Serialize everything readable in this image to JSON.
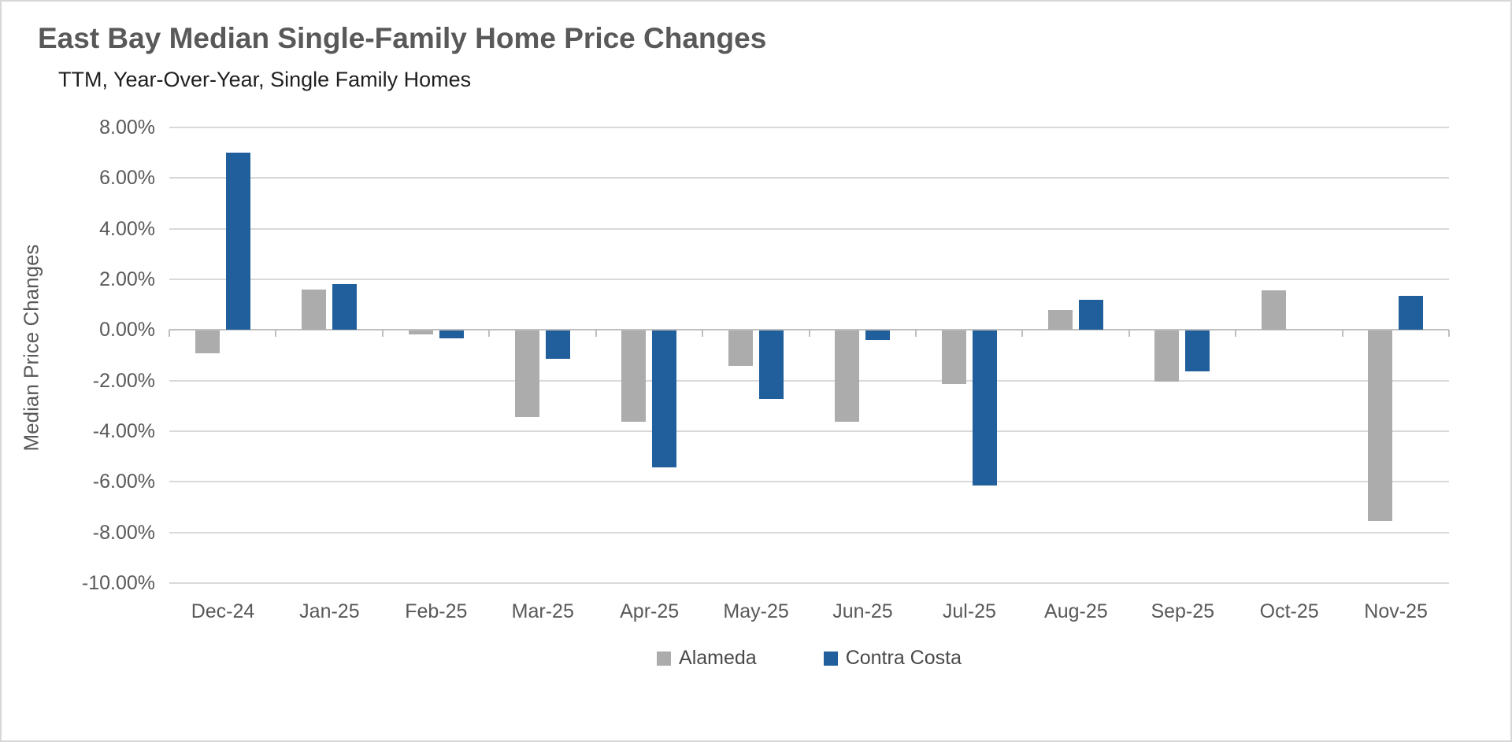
{
  "chart": {
    "title": "East Bay Median Single-Family Home Price Changes",
    "subtitle": "TTM, Year-Over-Year, Single Family Homes"
  },
  "chart_data": {
    "type": "bar",
    "title": "East Bay Median Single-Family Home Price Changes",
    "subtitle": "TTM, Year-Over-Year, Single Family Homes",
    "categories": [
      "Dec-24",
      "Jan-25",
      "Feb-25",
      "Mar-25",
      "Apr-25",
      "May-25",
      "Jun-25",
      "Jul-25",
      "Aug-25",
      "Sep-25",
      "Oct-25",
      "Nov-25"
    ],
    "series": [
      {
        "name": "Alameda",
        "color": "#acacac",
        "values": [
          -0.9,
          1.6,
          -0.15,
          -3.4,
          -3.6,
          -1.4,
          -3.6,
          -2.1,
          0.8,
          -2.0,
          1.55,
          -7.5
        ]
      },
      {
        "name": "Contra Costa",
        "color": "#215f9c",
        "values": [
          7.0,
          1.8,
          -0.3,
          -1.1,
          -5.4,
          -2.7,
          -0.35,
          -6.1,
          1.2,
          -1.6,
          0.0,
          1.35
        ]
      }
    ],
    "xlabel": "",
    "ylabel": "Median Price Changes",
    "ylim": [
      -10,
      8
    ],
    "y_ticks": [
      8,
      6,
      4,
      2,
      0,
      -2,
      -4,
      -6,
      -8,
      -10
    ],
    "y_tick_labels": [
      "8.00%",
      "6.00%",
      "4.00%",
      "2.00%",
      "0.00%",
      "-2.00%",
      "-4.00%",
      "-6.00%",
      "-8.00%",
      "-10.00%"
    ],
    "grid": true,
    "legend_position": "bottom",
    "colors": {
      "gridline": "#d9d9d9",
      "zero_line": "#bfbfbf",
      "axis_text": "#595959",
      "title_text": "#595959",
      "subtitle_text": "#1f1f1f"
    }
  }
}
